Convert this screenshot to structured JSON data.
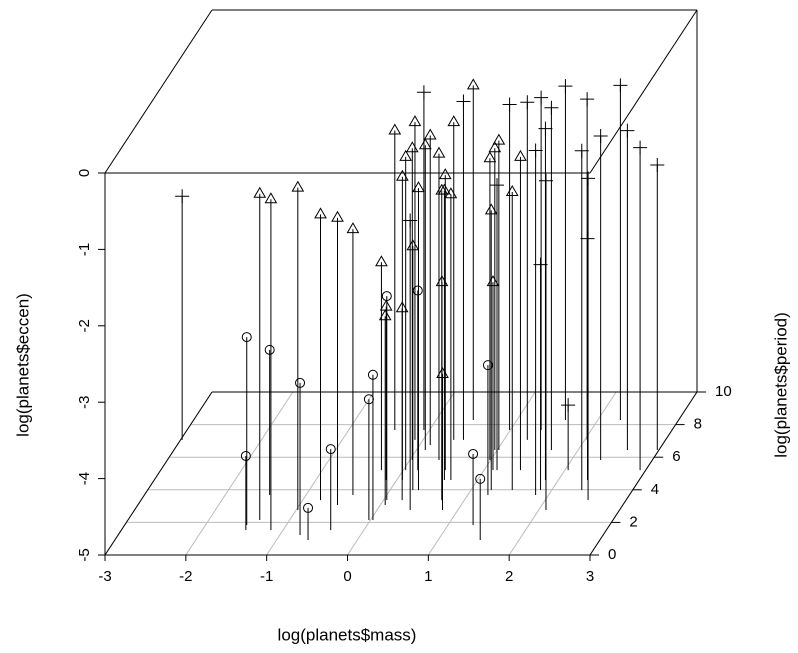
{
  "chart_data": {
    "type": "scatter3d",
    "xlabel": "log(planets$mass)",
    "ylabel": "log(planets$period)",
    "zlabel": "log(planets$eccen)",
    "xlim": [
      -3,
      3
    ],
    "xticks": [
      -3,
      -2,
      -1,
      0,
      1,
      2,
      3
    ],
    "ylim": [
      0,
      10
    ],
    "yticks": [
      0,
      2,
      4,
      6,
      8,
      10
    ],
    "zlim": [
      -5,
      0
    ],
    "zticks": [
      -5,
      -4,
      -3,
      -2,
      -1,
      0
    ],
    "grid": true,
    "series": [
      {
        "marker": "circle",
        "color": "#000000",
        "x": [
          -1.49,
          -1.46,
          -1.45,
          -0.75,
          -0.41,
          -0.61,
          0.03,
          -0.02,
          0.04,
          0.18,
          1.25,
          1.31,
          1.52
        ],
        "y": [
          1.84,
          1.53,
          3.68,
          1.23,
          1.53,
          0.92,
          2.15,
          2.15,
          3.37,
          5.21,
          3.68,
          1.84,
          0.92
        ],
        "z": [
          -2.54,
          -4.03,
          -3.1,
          -3.01,
          -3.94,
          -4.58,
          -3.1,
          -3.42,
          -2.33,
          -2.65,
          -3.3,
          -4.07,
          -4.2
        ]
      },
      {
        "marker": "triangle",
        "color": "#000000",
        "x": [
          -1.37,
          -1.15,
          -0.98,
          -0.78,
          -0.53,
          -0.42,
          -0.27,
          0.06,
          -0.13,
          0.23,
          0.28,
          0.56,
          0.81,
          1.11,
          -0.43,
          0.03,
          0.03,
          -0.1,
          0.11,
          0.13,
          0.07,
          0.35,
          0.72,
          0.38,
          0.36,
          0.52,
          0.59,
          0.67,
          0.99,
          0.97,
          1.02,
          1.25,
          1.51,
          1.45,
          0.46
        ],
        "y": [
          2.15,
          1.53,
          2.76,
          3.37,
          3.07,
          3.68,
          5.21,
          3.07,
          4.6,
          3.37,
          3.99,
          4.6,
          2.76,
          5.21,
          7.67,
          5.21,
          5.83,
          7.06,
          6.44,
          6.75,
          4.6,
          3.99,
          3.37,
          7.06,
          5.83,
          5.21,
          4.6,
          4.6,
          5.83,
          6.44,
          6.44,
          3.99,
          3.99,
          5.21,
          8.28
        ],
        "z": [
          -0.73,
          -0.67,
          -0.78,
          -1.26,
          -1.24,
          -1.52,
          -2.28,
          -2.53,
          -2.73,
          -2.49,
          -1.81,
          -2.41,
          -3.22,
          -2.54,
          -1.08,
          -0.9,
          -0.92,
          -0.84,
          -1.01,
          -0.95,
          -1.03,
          -1.05,
          -0.95,
          -0.84,
          -0.99,
          -1.14,
          -1.21,
          -1.26,
          -1.05,
          -1.05,
          -0.95,
          -1.34,
          -1.1,
          -0.9,
          -0.62
        ]
      },
      {
        "marker": "plus",
        "color": "#000000",
        "x": [
          -2.98,
          -0.07,
          0.5,
          0.99,
          1.29,
          1.38,
          1.67,
          1.6,
          2.03,
          2.28,
          2.61,
          2.36,
          2.93,
          2.98,
          1.84,
          2.37,
          2.53,
          1.84,
          2.09,
          2.36,
          1.86,
          2.04,
          0.41,
          1.16
        ],
        "y": [
          7.06,
          7.67,
          7.06,
          7.67,
          7.06,
          7.67,
          6.44,
          8.28,
          7.06,
          8.28,
          6.44,
          5.83,
          5.21,
          6.44,
          4.6,
          3.99,
          3.37,
          3.68,
          2.76,
          4.6,
          3.99,
          5.21,
          2.76,
          5.21
        ],
        "z": [
          -1.81,
          -0.58,
          -0.57,
          -0.74,
          -0.58,
          -0.65,
          -0.52,
          -0.63,
          -0.54,
          -0.62,
          -0.82,
          -0.76,
          -0.78,
          -1.27,
          -0.4,
          -0.56,
          -0.79,
          -0.49,
          -0.69,
          -1.84,
          -2.05,
          -4.15,
          -1.21,
          -1.27
        ]
      }
    ]
  }
}
